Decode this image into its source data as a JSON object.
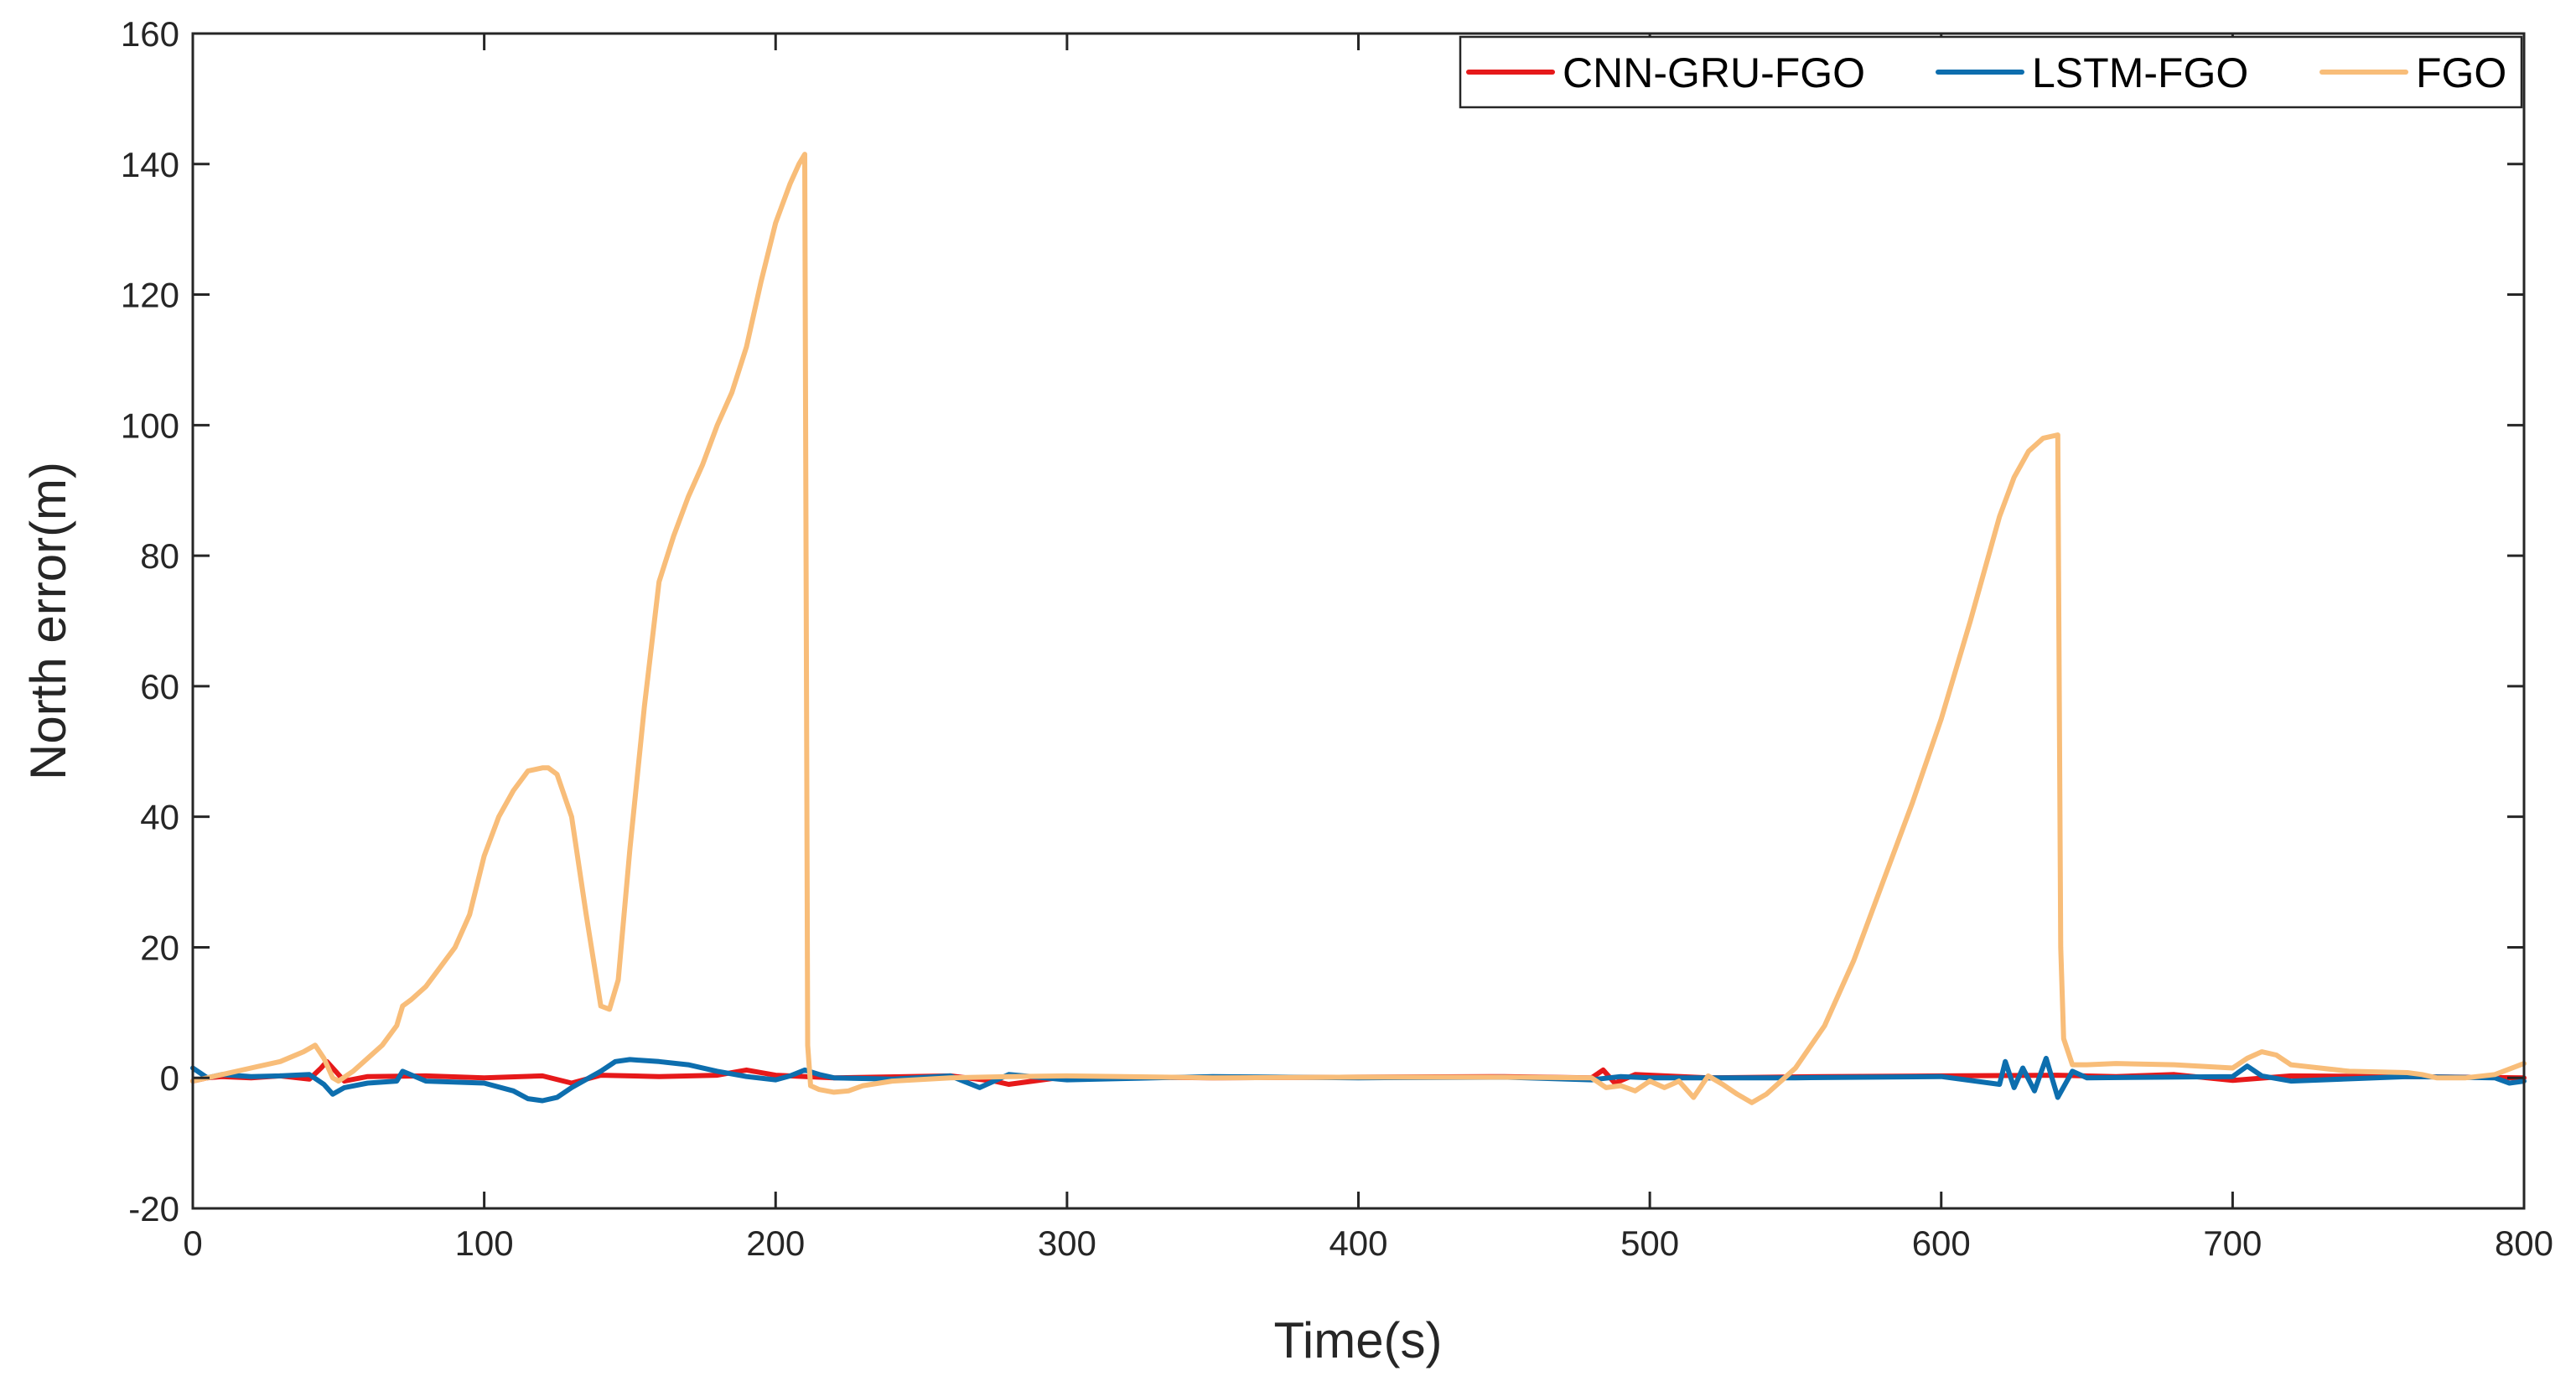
{
  "chart_data": {
    "type": "line",
    "xlabel": "Time(s)",
    "ylabel": "North error(m)",
    "xlim": [
      0,
      800
    ],
    "ylim": [
      -20,
      160
    ],
    "xticks": [
      0,
      100,
      200,
      300,
      400,
      500,
      600,
      700,
      800
    ],
    "yticks": [
      -20,
      0,
      20,
      40,
      60,
      80,
      100,
      120,
      140,
      160
    ],
    "grid": false,
    "box": true,
    "legend_position": "top-right",
    "series": [
      {
        "name": "CNN-GRU-FGO",
        "color": "#e6191a",
        "x": [
          0,
          5,
          10,
          20,
          30,
          40,
          44,
          46,
          48,
          52,
          60,
          80,
          100,
          120,
          130,
          140,
          160,
          180,
          190,
          200,
          220,
          260,
          275,
          280,
          300,
          350,
          400,
          450,
          480,
          484,
          488,
          495,
          520,
          560,
          600,
          640,
          660,
          680,
          700,
          720,
          760,
          800
        ],
        "y": [
          -0.5,
          0,
          0.2,
          0,
          0.3,
          -0.2,
          1.5,
          2.5,
          1.5,
          -0.5,
          0.2,
          0.3,
          0,
          0.3,
          -0.8,
          0.4,
          0.2,
          0.4,
          1.2,
          0.4,
          0,
          0.3,
          -0.5,
          -1,
          0.2,
          0,
          0.1,
          0.2,
          0,
          1.2,
          -0.8,
          0.5,
          0,
          0.2,
          0.3,
          0.4,
          0.2,
          0.5,
          -0.4,
          0.3,
          0.2,
          0
        ]
      },
      {
        "name": "LSTM-FGO",
        "color": "#0d6eae",
        "x": [
          0,
          5,
          10,
          20,
          30,
          40,
          45,
          48,
          52,
          60,
          70,
          72,
          80,
          100,
          110,
          115,
          120,
          125,
          130,
          140,
          145,
          150,
          160,
          170,
          180,
          190,
          200,
          205,
          210,
          215,
          220,
          240,
          260,
          270,
          280,
          300,
          350,
          400,
          450,
          480,
          490,
          500,
          550,
          600,
          620,
          622,
          625,
          628,
          632,
          636,
          640,
          645,
          650,
          700,
          705,
          710,
          720,
          760,
          790,
          795,
          800
        ],
        "y": [
          1.5,
          0,
          0.5,
          0.2,
          0.3,
          0.5,
          -1,
          -2.5,
          -1.5,
          -0.8,
          -0.5,
          1,
          -0.5,
          -0.8,
          -2,
          -3.2,
          -3.5,
          -3,
          -1.5,
          1,
          2.5,
          2.8,
          2.5,
          2,
          1,
          0.2,
          -0.3,
          0.3,
          1.2,
          0.5,
          0,
          -0.2,
          0.3,
          -1.5,
          0.5,
          -0.3,
          0.2,
          0,
          0.1,
          -0.3,
          0.2,
          0,
          0,
          0.2,
          -1,
          2.5,
          -1.5,
          1.5,
          -2,
          3,
          -3,
          1,
          0,
          0.2,
          1.8,
          0.3,
          -0.5,
          0.2,
          0,
          -0.8,
          -0.5
        ]
      },
      {
        "name": "FGO",
        "color": "#f8bd79",
        "x": [
          0,
          5,
          10,
          20,
          30,
          38,
          42,
          45,
          48,
          50,
          55,
          60,
          65,
          70,
          72,
          75,
          80,
          85,
          90,
          95,
          100,
          105,
          110,
          115,
          120,
          122,
          125,
          130,
          135,
          140,
          143,
          146,
          150,
          155,
          160,
          165,
          170,
          175,
          180,
          185,
          190,
          195,
          200,
          205,
          208,
          210,
          211,
          212,
          215,
          220,
          225,
          230,
          240,
          260,
          280,
          300,
          350,
          400,
          450,
          480,
          485,
          490,
          495,
          500,
          505,
          510,
          515,
          520,
          525,
          530,
          535,
          540,
          545,
          550,
          560,
          570,
          580,
          590,
          600,
          610,
          615,
          620,
          625,
          630,
          635,
          640,
          641,
          642,
          645,
          650,
          660,
          680,
          700,
          705,
          710,
          715,
          720,
          740,
          760,
          765,
          770,
          780,
          790,
          800
        ],
        "y": [
          -0.5,
          0,
          0.5,
          1.5,
          2.5,
          4,
          5,
          3,
          0,
          -0.5,
          1,
          3,
          5,
          8,
          11,
          12,
          14,
          17,
          20,
          25,
          34,
          40,
          44,
          47,
          47.5,
          47.5,
          46.5,
          40,
          25,
          11,
          10.5,
          15,
          35,
          57,
          76,
          83,
          89,
          94,
          100,
          105,
          112,
          122,
          131,
          137,
          140,
          141.5,
          5,
          -1.2,
          -1.8,
          -2.2,
          -2,
          -1.2,
          -0.5,
          0,
          0.2,
          0.3,
          0,
          0.1,
          0.1,
          0,
          -1.5,
          -1.2,
          -2,
          -0.5,
          -1.5,
          -0.5,
          -3,
          0.3,
          -1,
          -2.5,
          -3.8,
          -2.5,
          -0.5,
          1.5,
          8,
          18,
          30,
          42,
          55,
          70,
          78,
          86,
          92,
          96,
          98,
          98.5,
          20,
          6,
          2,
          2,
          2.2,
          2,
          1.5,
          3,
          4,
          3.5,
          2,
          1,
          0.8,
          0.5,
          0,
          0,
          0.5,
          2.2
        ]
      }
    ]
  }
}
